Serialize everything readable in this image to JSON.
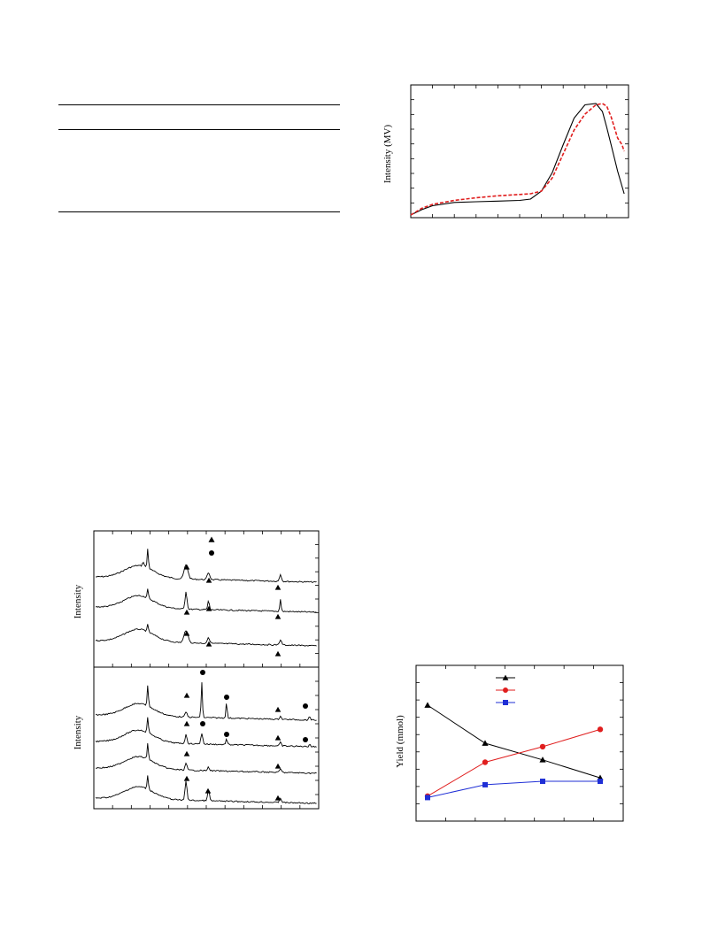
{
  "table": {
    "caption": "",
    "columns": [
      "",
      "",
      "",
      ""
    ],
    "rows": []
  },
  "colors": {
    "black": "#000000",
    "red": "#e01e1e",
    "blue": "#1f2fd6"
  },
  "chart_data": [
    {
      "id": "top-right-profile",
      "type": "line",
      "ylabel": "Intensity (MV)",
      "xlabel": "",
      "grid": false,
      "series": [
        {
          "color": "#000000",
          "style": "solid",
          "x": [
            0,
            5,
            10,
            20,
            30,
            40,
            50,
            55,
            60,
            65,
            70,
            75,
            80,
            85,
            88,
            90,
            92,
            95,
            98
          ],
          "y": [
            2,
            6,
            9,
            11.5,
            12,
            12.5,
            13,
            14,
            20,
            34,
            55,
            75,
            85,
            86,
            80,
            68,
            55,
            35,
            18
          ]
        },
        {
          "color": "#e01e1e",
          "style": "dashed",
          "x": [
            0,
            5,
            10,
            20,
            30,
            40,
            50,
            55,
            60,
            65,
            70,
            75,
            80,
            85,
            88,
            90,
            92,
            95,
            97,
            98
          ],
          "y": [
            2,
            7,
            10,
            13,
            15,
            16.5,
            17.5,
            18,
            20,
            30,
            48,
            66,
            78,
            85,
            86,
            84,
            76,
            60,
            55,
            50
          ]
        }
      ],
      "xlim": [
        0,
        100
      ],
      "ylim": [
        0,
        100
      ]
    },
    {
      "id": "xrd-top",
      "type": "line",
      "ylabel": "Intensity",
      "legend_markers": [
        "triangle",
        "circle"
      ],
      "xlim": [
        0,
        100
      ],
      "ylim": [
        0,
        100
      ]
    },
    {
      "id": "xrd-bottom",
      "type": "line",
      "ylabel": "Intensity",
      "xlim": [
        0,
        100
      ],
      "ylim": [
        0,
        100
      ]
    },
    {
      "id": "yield-chart",
      "type": "line",
      "ylabel": "Yield (mmol)",
      "x": [
        1,
        2,
        3,
        4
      ],
      "series": [
        {
          "marker": "triangle",
          "color": "#000000",
          "values": [
            2.85,
            1.75,
            1.27,
            0.75
          ]
        },
        {
          "marker": "circle",
          "color": "#e01e1e",
          "values": [
            0.22,
            1.2,
            1.65,
            2.15
          ]
        },
        {
          "marker": "square",
          "color": "#1f2fd6",
          "values": [
            0.18,
            0.55,
            0.65,
            0.65
          ]
        }
      ],
      "xlim": [
        0.8,
        4.4
      ],
      "ylim": [
        -0.5,
        4.0
      ],
      "legend_position": "top-center"
    }
  ]
}
